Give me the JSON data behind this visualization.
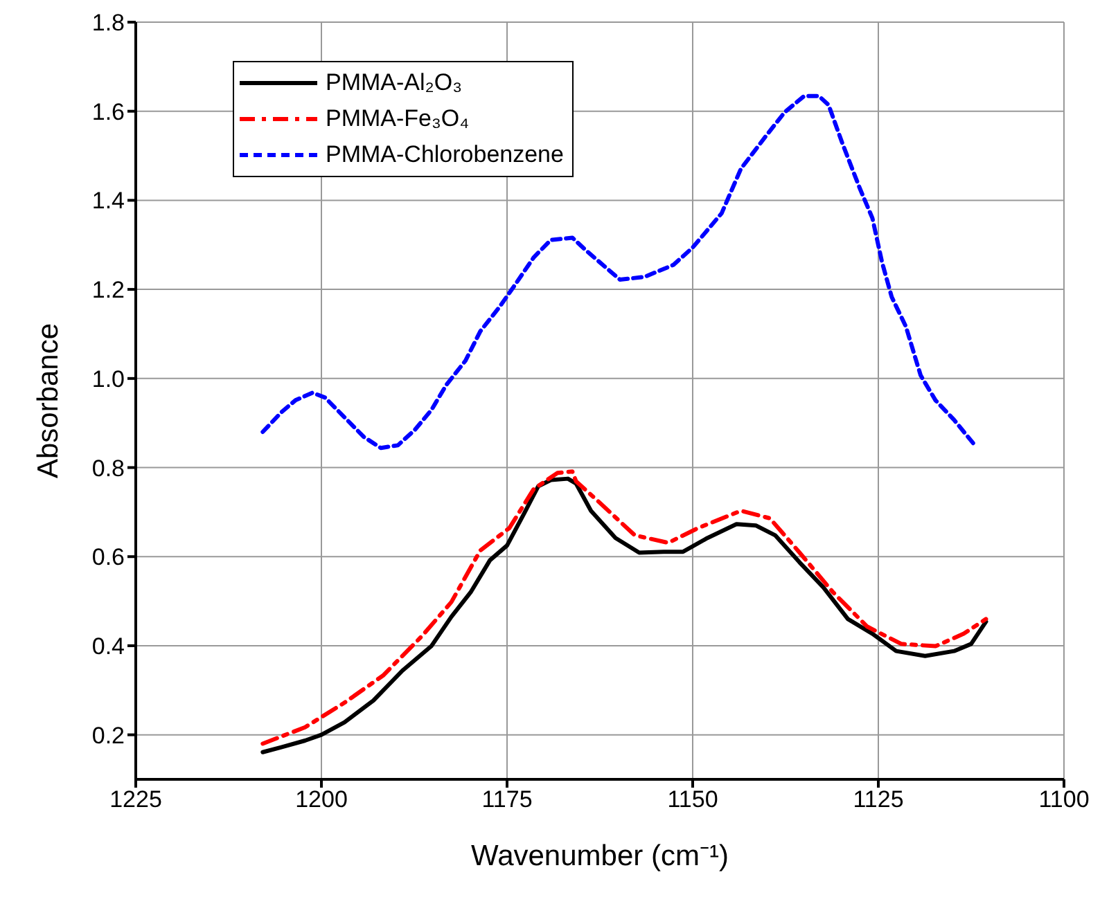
{
  "chart_data": {
    "type": "line",
    "xlabel": "Wavenumber (cm⁻¹)",
    "ylabel": "Absorbance",
    "xlim": [
      1225,
      1100
    ],
    "xticks": [
      1225,
      1200,
      1175,
      1150,
      1125,
      1100
    ],
    "ylim": [
      0.1,
      1.8
    ],
    "yticks": [
      0.2,
      0.4,
      0.6,
      0.8,
      {
        "value": 1,
        "label": "1.0"
      },
      1.2,
      1.4,
      1.6,
      1.8
    ],
    "grid": true,
    "legend": "top left",
    "series": [
      {
        "name": "PMMA-Al₂O₃",
        "color": "#000000",
        "line_style": "solid",
        "x": [
          1207.9,
          1205.4,
          1202.2,
          1200.0,
          1196.9,
          1193.0,
          1189.1,
          1185.2,
          1182.5,
          1179.9,
          1177.3,
          1175.0,
          1172.7,
          1170.8,
          1169.1,
          1166.8,
          1165.7,
          1163.7,
          1160.4,
          1157.2,
          1153.9,
          1151.3,
          1148.0,
          1144.1,
          1141.5,
          1138.9,
          1135.6,
          1132.4,
          1129.1,
          1125.8,
          1122.6,
          1118.7,
          1114.8,
          1112.5,
          1110.5
        ],
        "values": [
          0.161,
          0.172,
          0.187,
          0.2,
          0.228,
          0.277,
          0.344,
          0.399,
          0.465,
          0.52,
          0.592,
          0.625,
          0.697,
          0.758,
          0.772,
          0.775,
          0.764,
          0.703,
          0.642,
          0.609,
          0.611,
          0.611,
          0.642,
          0.673,
          0.67,
          0.648,
          0.587,
          0.531,
          0.46,
          0.427,
          0.388,
          0.377,
          0.388,
          0.404,
          0.454
        ]
      },
      {
        "name": "PMMA-Fe₃O₄",
        "color": "#ff0000",
        "line_style": "dashed",
        "x": [
          1207.9,
          1202.2,
          1196.9,
          1191.7,
          1186.5,
          1182.5,
          1178.6,
          1174.7,
          1171.4,
          1168.2,
          1166.2,
          1165.7,
          1163.1,
          1157.8,
          1153.3,
          1149.3,
          1143.5,
          1139.6,
          1135.6,
          1131.1,
          1126.5,
          1121.9,
          1117.3,
          1113.5,
          1110.5
        ],
        "values": [
          0.18,
          0.217,
          0.272,
          0.333,
          0.421,
          0.498,
          0.614,
          0.664,
          0.752,
          0.788,
          0.791,
          0.769,
          0.73,
          0.648,
          0.631,
          0.664,
          0.703,
          0.686,
          0.609,
          0.52,
          0.443,
          0.404,
          0.399,
          0.427,
          0.46
        ]
      },
      {
        "name": "PMMA-Chlorobenzene",
        "color": "#0000ff",
        "line_style": "dotted",
        "x": [
          1207.9,
          1205.4,
          1203.5,
          1201.2,
          1199.5,
          1196.9,
          1194.3,
          1192.0,
          1189.7,
          1187.4,
          1185.2,
          1183.2,
          1180.6,
          1178.6,
          1176.0,
          1174.1,
          1171.4,
          1169.1,
          1166.2,
          1164.4,
          1162.1,
          1159.8,
          1156.5,
          1152.6,
          1150.0,
          1146.1,
          1143.5,
          1140.2,
          1137.6,
          1135.0,
          1133.0,
          1131.7,
          1129.8,
          1127.5,
          1125.8,
          1124.5,
          1123.2,
          1121.3,
          1119.3,
          1117.3,
          1114.8,
          1112.1
        ],
        "values": [
          0.88,
          0.924,
          0.951,
          0.968,
          0.957,
          0.913,
          0.869,
          0.844,
          0.85,
          0.885,
          0.929,
          0.985,
          1.04,
          1.106,
          1.161,
          1.206,
          1.272,
          1.311,
          1.316,
          1.288,
          1.255,
          1.222,
          1.228,
          1.255,
          1.294,
          1.371,
          1.471,
          1.543,
          1.598,
          1.634,
          1.634,
          1.614,
          1.526,
          1.427,
          1.36,
          1.261,
          1.183,
          1.117,
          1.007,
          0.951,
          0.907,
          0.852
        ]
      }
    ]
  }
}
